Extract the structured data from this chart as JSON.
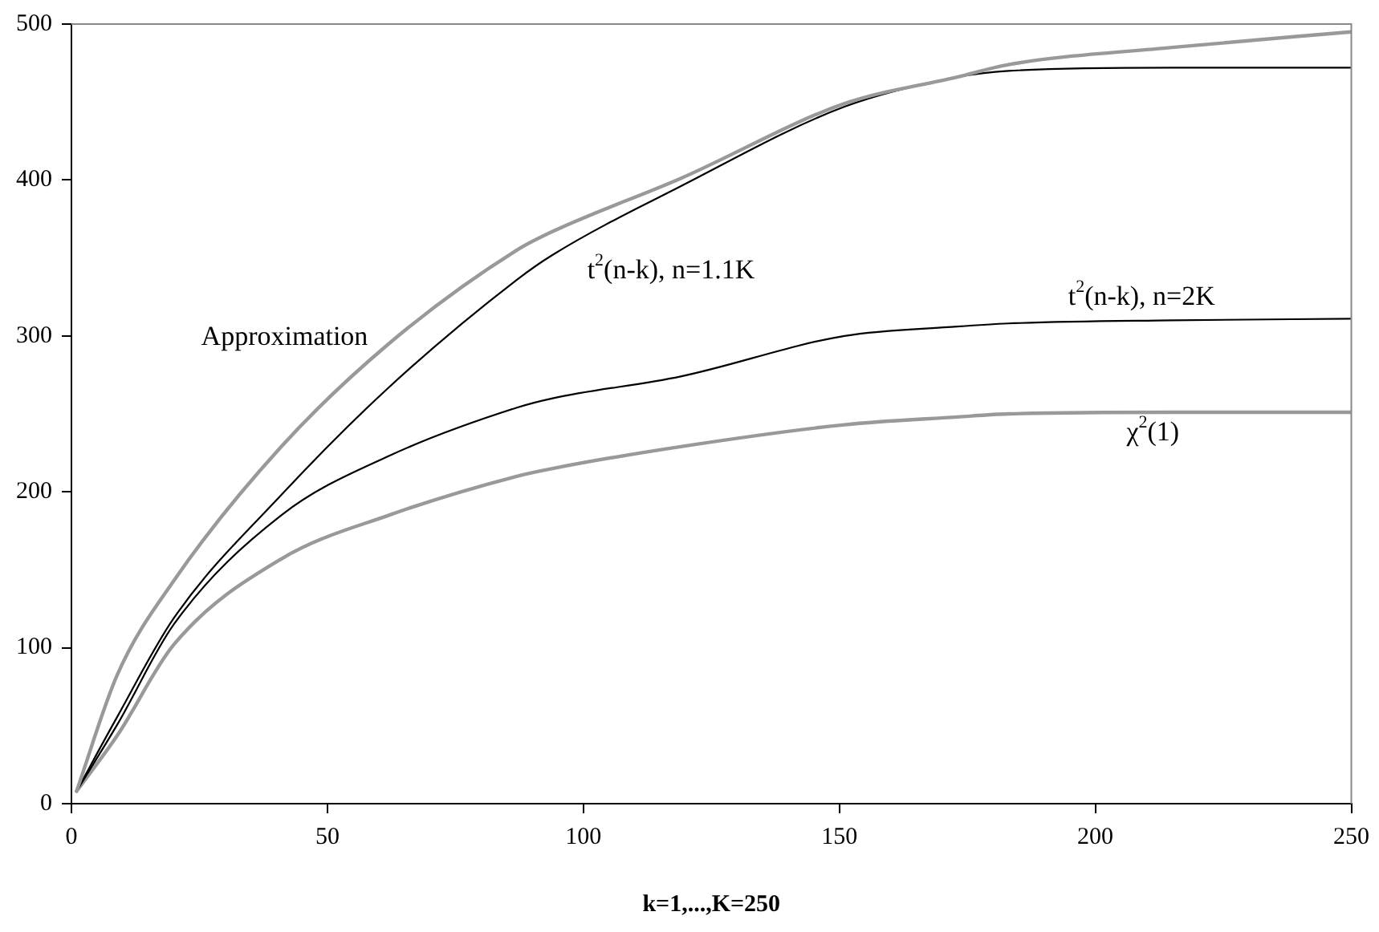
{
  "chart_data": {
    "type": "line",
    "xlabel": "k=1,...,K=250",
    "xlim": [
      0,
      250
    ],
    "xticks": [
      0,
      50,
      100,
      150,
      200,
      250
    ],
    "ylim": [
      0,
      500
    ],
    "yticks": [
      0,
      100,
      200,
      300,
      400,
      500
    ],
    "grid": false,
    "legend": false,
    "marker": "none",
    "line_style": "solid",
    "series": [
      {
        "name": "Approximation",
        "color": "#999999",
        "x": [
          1,
          9,
          20,
          41,
          62,
          87,
          94,
          119,
          151,
          173,
          183,
          215,
          250
        ],
        "values": [
          8,
          83,
          143,
          229,
          295,
          355,
          367,
          401,
          449,
          466,
          474,
          485,
          495
        ]
      },
      {
        "name": "t$^{2}$(n-k), n=1.1K",
        "color": "#000000",
        "x": [
          1,
          9,
          20,
          41,
          62,
          87,
          94,
          119,
          151,
          173,
          183,
          215,
          250
        ],
        "values": [
          8,
          56,
          119,
          198,
          267,
          336,
          352,
          396,
          447,
          466,
          470,
          472,
          472
        ]
      },
      {
        "name": "t$^{2}$(n-k), n=2K",
        "color": "#000000",
        "x": [
          1,
          9,
          20,
          41,
          62,
          87,
          94,
          119,
          151,
          173,
          183,
          215,
          250
        ],
        "values": [
          8,
          51,
          115,
          185,
          223,
          254,
          260,
          274,
          300,
          306,
          308,
          310,
          311
        ]
      },
      {
        "name": "χ$^{2}$(1)",
        "color": "#999999",
        "x": [
          1,
          9,
          20,
          41,
          62,
          87,
          94,
          119,
          151,
          173,
          183,
          215,
          250
        ],
        "values": [
          8,
          44,
          102,
          157,
          185,
          210,
          215,
          229,
          243,
          248,
          250,
          251,
          251
        ]
      }
    ]
  }
}
